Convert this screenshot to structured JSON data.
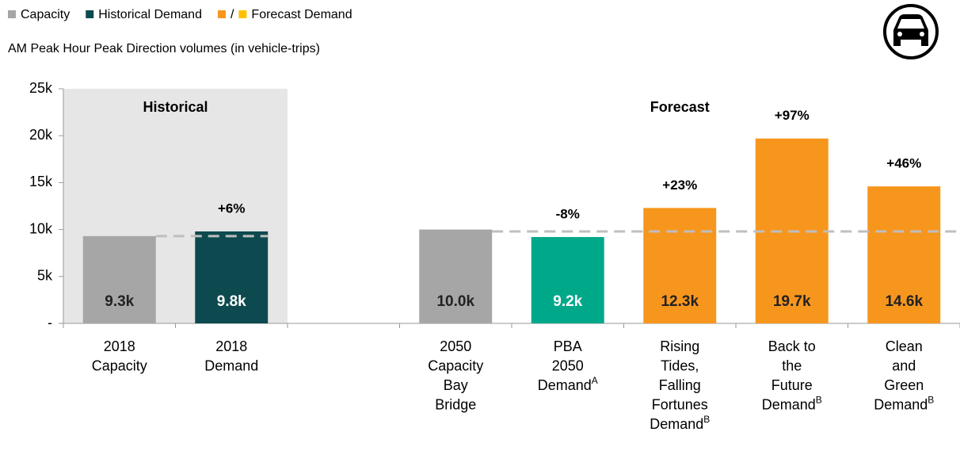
{
  "chart_data": {
    "type": "bar",
    "subtitle": "AM Peak Hour Peak Direction volumes (in vehicle-trips)",
    "legend": [
      {
        "label": "Capacity",
        "colors": [
          "#a6a6a6"
        ]
      },
      {
        "label": "Historical Demand",
        "colors": [
          "#0d4a4f"
        ]
      },
      {
        "label": "Forecast Demand",
        "colors": [
          "#f7961d",
          "#ffc000"
        ],
        "separator": "/"
      }
    ],
    "regions": [
      {
        "label": "Historical"
      },
      {
        "label": "Forecast"
      }
    ],
    "categories": [
      [
        "2018",
        "Capacity"
      ],
      [
        "2018",
        "Demand"
      ],
      null,
      [
        "2050",
        "Capacity",
        "Bay",
        "Bridge"
      ],
      [
        "PBA",
        "2050",
        "Demand"
      ],
      [
        "Rising",
        "Tides,",
        "Falling",
        "Fortunes",
        "Demand"
      ],
      [
        "Back to",
        "the",
        "Future",
        "Demand"
      ],
      [
        "Clean",
        "and",
        "Green",
        "Demand"
      ]
    ],
    "category_notes": [
      null,
      null,
      null,
      null,
      "A",
      "B",
      "B",
      "B"
    ],
    "values": [
      9300,
      9800,
      null,
      10000,
      9200,
      12300,
      19700,
      14600
    ],
    "value_labels": [
      "9.3k",
      "9.8k",
      null,
      "10.0k",
      "9.2k",
      "12.3k",
      "19.7k",
      "14.6k"
    ],
    "change_labels": [
      null,
      "+6%",
      null,
      null,
      "-8%",
      "+23%",
      "+97%",
      "+46%"
    ],
    "colors": [
      "#a6a6a6",
      "#0d4a4f",
      null,
      "#a6a6a6",
      "#00a88a",
      "#f7961d",
      "#f7961d",
      "#f7961d"
    ],
    "value_label_colors": [
      "#222222",
      "#ffffff",
      null,
      "#222222",
      "#ffffff",
      "#222222",
      "#222222",
      "#222222"
    ],
    "reference_lines": [
      {
        "value": 9300
      },
      {
        "value": 9800
      }
    ],
    "ylim": [
      0,
      25000
    ],
    "yticks": [
      {
        "value": 0,
        "label": "-"
      },
      {
        "value": 5000,
        "label": "5k"
      },
      {
        "value": 10000,
        "label": "10k"
      },
      {
        "value": 15000,
        "label": "15k"
      },
      {
        "value": 20000,
        "label": "20k"
      },
      {
        "value": 25000,
        "label": "25k"
      }
    ]
  }
}
